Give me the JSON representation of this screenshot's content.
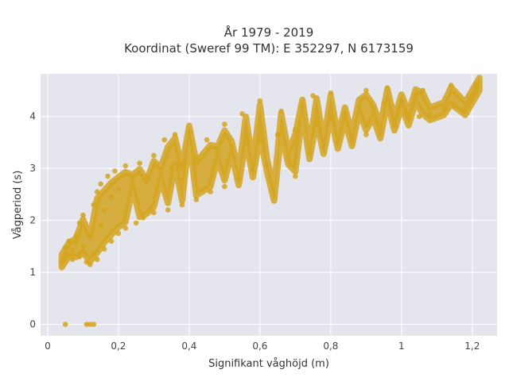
{
  "chart_data": {
    "type": "scatter",
    "title": "År 1979 - 2019",
    "subtitle": "Koordinat (Sweref 99 TM): E 352297, N 6173159",
    "xlabel": "Signifikant våghöjd (m)",
    "ylabel": "Vågperiod (s)",
    "xlim": [
      -0.02,
      1.27
    ],
    "ylim": [
      -0.22,
      4.82
    ],
    "x_ticks": [
      0,
      0.2,
      0.4,
      0.6,
      0.8,
      1,
      1.2
    ],
    "x_tick_labels": [
      "0",
      "0,2",
      "0,4",
      "0,6",
      "0,8",
      "1",
      "1,2"
    ],
    "y_ticks": [
      0,
      1,
      2,
      3,
      4
    ],
    "y_tick_labels": [
      "0",
      "1",
      "2",
      "3",
      "4"
    ],
    "grid": true,
    "legend": "none",
    "series": [
      {
        "color": "#d4a520",
        "points": [
          [
            0.05,
            0.0
          ],
          [
            0.11,
            0.0
          ],
          [
            0.12,
            0.0
          ],
          [
            0.13,
            0.0
          ],
          [
            0.04,
            1.22
          ],
          [
            0.05,
            1.28
          ],
          [
            0.05,
            1.48
          ],
          [
            0.06,
            1.35
          ],
          [
            0.06,
            1.6
          ],
          [
            0.07,
            1.25
          ],
          [
            0.07,
            1.42
          ],
          [
            0.08,
            1.55
          ],
          [
            0.08,
            1.7
          ],
          [
            0.09,
            1.95
          ],
          [
            0.09,
            1.3
          ],
          [
            0.1,
            1.5
          ],
          [
            0.1,
            2.1
          ],
          [
            0.11,
            1.2
          ],
          [
            0.12,
            1.15
          ],
          [
            0.12,
            1.75
          ],
          [
            0.13,
            2.3
          ],
          [
            0.13,
            1.35
          ],
          [
            0.14,
            2.55
          ],
          [
            0.14,
            1.25
          ],
          [
            0.15,
            1.9
          ],
          [
            0.15,
            2.7
          ],
          [
            0.16,
            1.45
          ],
          [
            0.16,
            2.2
          ],
          [
            0.17,
            2.85
          ],
          [
            0.18,
            1.6
          ],
          [
            0.18,
            2.45
          ],
          [
            0.19,
            2.95
          ],
          [
            0.2,
            1.75
          ],
          [
            0.2,
            2.6
          ],
          [
            0.22,
            3.05
          ],
          [
            0.22,
            1.85
          ],
          [
            0.24,
            2.75
          ],
          [
            0.25,
            1.95
          ],
          [
            0.26,
            3.1
          ],
          [
            0.27,
            2.05
          ],
          [
            0.28,
            2.85
          ],
          [
            0.3,
            3.25
          ],
          [
            0.3,
            2.15
          ],
          [
            0.32,
            2.9
          ],
          [
            0.33,
            3.55
          ],
          [
            0.34,
            2.2
          ],
          [
            0.35,
            3.0
          ],
          [
            0.36,
            3.65
          ],
          [
            0.38,
            2.3
          ],
          [
            0.38,
            3.1
          ],
          [
            0.4,
            3.7
          ],
          [
            0.42,
            2.4
          ],
          [
            0.42,
            3.2
          ],
          [
            0.45,
            3.55
          ],
          [
            0.46,
            2.55
          ],
          [
            0.48,
            3.3
          ],
          [
            0.5,
            3.85
          ],
          [
            0.5,
            2.65
          ],
          [
            0.52,
            3.4
          ],
          [
            0.54,
            2.8
          ],
          [
            0.55,
            4.05
          ],
          [
            0.56,
            3.5
          ],
          [
            0.58,
            2.95
          ],
          [
            0.6,
            3.55
          ],
          [
            0.6,
            4.3
          ],
          [
            0.62,
            3.05
          ],
          [
            0.64,
            2.5
          ],
          [
            0.65,
            3.65
          ],
          [
            0.66,
            4.1
          ],
          [
            0.68,
            3.2
          ],
          [
            0.7,
            3.75
          ],
          [
            0.7,
            2.85
          ],
          [
            0.72,
            4.2
          ],
          [
            0.74,
            3.3
          ],
          [
            0.75,
            4.4
          ],
          [
            0.76,
            3.85
          ],
          [
            0.78,
            3.4
          ],
          [
            0.8,
            3.95
          ],
          [
            0.8,
            4.45
          ],
          [
            0.82,
            3.5
          ],
          [
            0.84,
            4.05
          ],
          [
            0.86,
            3.55
          ],
          [
            0.88,
            4.2
          ],
          [
            0.9,
            3.65
          ],
          [
            0.9,
            4.5
          ],
          [
            0.92,
            4.1
          ],
          [
            0.94,
            3.7
          ],
          [
            0.95,
            4.25
          ],
          [
            0.96,
            4.55
          ],
          [
            0.98,
            3.85
          ],
          [
            1.0,
            4.3
          ],
          [
            1.02,
            3.95
          ],
          [
            1.04,
            4.4
          ],
          [
            1.05,
            4.0
          ],
          [
            1.06,
            4.5
          ],
          [
            1.08,
            4.05
          ],
          [
            1.12,
            4.15
          ],
          [
            1.14,
            4.6
          ],
          [
            1.15,
            4.2
          ],
          [
            1.18,
            4.15
          ],
          [
            1.21,
            4.62
          ]
        ]
      }
    ]
  }
}
